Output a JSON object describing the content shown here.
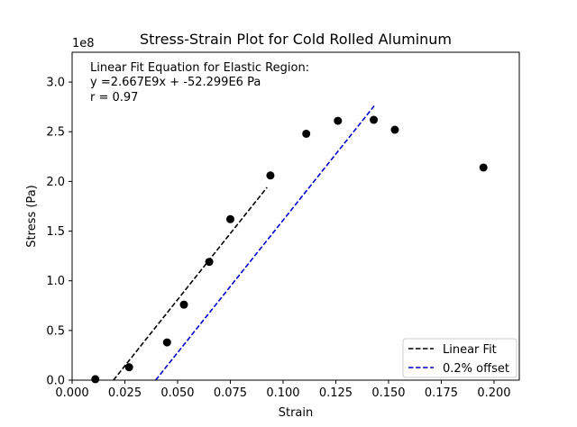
{
  "chart_data": {
    "type": "scatter",
    "title": "Stress-Strain Plot for Cold Rolled Aluminum",
    "xlabel": "Strain",
    "ylabel": "Stress (Pa)",
    "y_offset_label": "1e8",
    "xlim": [
      0.0,
      0.212
    ],
    "ylim": [
      0.0,
      3.3
    ],
    "x_ticks": [
      0.0,
      0.025,
      0.05,
      0.075,
      0.1,
      0.125,
      0.15,
      0.175,
      0.2
    ],
    "x_tick_labels": [
      "0.000",
      "0.025",
      "0.050",
      "0.075",
      "0.100",
      "0.125",
      "0.150",
      "0.175",
      "0.200"
    ],
    "y_ticks": [
      0.0,
      0.5,
      1.0,
      1.5,
      2.0,
      2.5,
      3.0
    ],
    "y_tick_labels": [
      "0.0",
      "0.5",
      "1.0",
      "1.5",
      "2.0",
      "2.5",
      "3.0"
    ],
    "grid": false,
    "points": {
      "color": "#000000",
      "x": [
        0.011,
        0.027,
        0.045,
        0.053,
        0.065,
        0.075,
        0.094,
        0.111,
        0.126,
        0.143,
        0.153,
        0.195
      ],
      "y": [
        0.01,
        0.13,
        0.38,
        0.76,
        1.19,
        1.62,
        2.06,
        2.48,
        2.61,
        2.62,
        2.52,
        2.14
      ]
    },
    "series": [
      {
        "name": "Linear Fit",
        "color": "#000000",
        "style": "dashed",
        "x": [
          0.0196,
          0.0924
        ],
        "y": [
          0.0,
          1.94
        ]
      },
      {
        "name": "0.2% offset",
        "color": "#0000cc",
        "style": "dashed",
        "x": [
          0.0396,
          0.1432
        ],
        "y": [
          0.0,
          2.76
        ]
      }
    ],
    "legend_position": "lower-right",
    "annotation": [
      "Linear Fit Equation for Elastic Region:",
      "y =2.667E9x + -52.299E6 Pa",
      "r = 0.97"
    ]
  }
}
